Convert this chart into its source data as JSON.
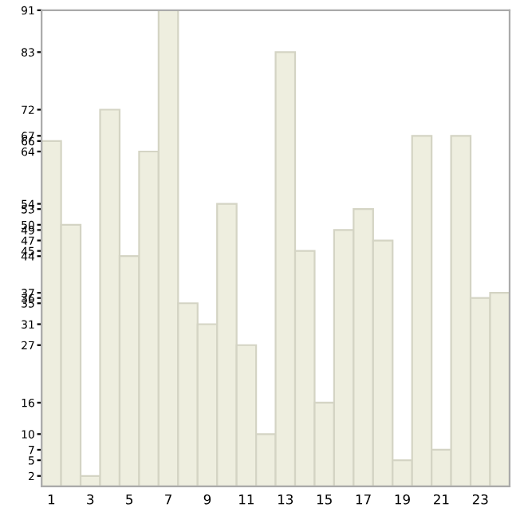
{
  "chart_data": {
    "type": "bar",
    "categories": [
      "1",
      null,
      "3",
      null,
      "5",
      null,
      "7",
      null,
      "9",
      null,
      "11",
      null,
      "13",
      null,
      "15",
      null,
      "17",
      null,
      "19",
      null,
      "21",
      null,
      "23",
      null
    ],
    "values": [
      66,
      50,
      2,
      72,
      44,
      64,
      91,
      35,
      31,
      54,
      27,
      10,
      83,
      45,
      16,
      49,
      53,
      47,
      5,
      67,
      7,
      67,
      36,
      37
    ],
    "color": "#eeeedf",
    "ylim": [
      0,
      91
    ],
    "yticks": [
      2,
      5,
      7,
      10,
      16,
      27,
      31,
      35,
      36,
      37,
      44,
      45,
      47,
      49,
      50,
      53,
      54,
      64,
      66,
      67,
      72,
      83,
      91
    ],
    "grid": false,
    "legend": false
  }
}
